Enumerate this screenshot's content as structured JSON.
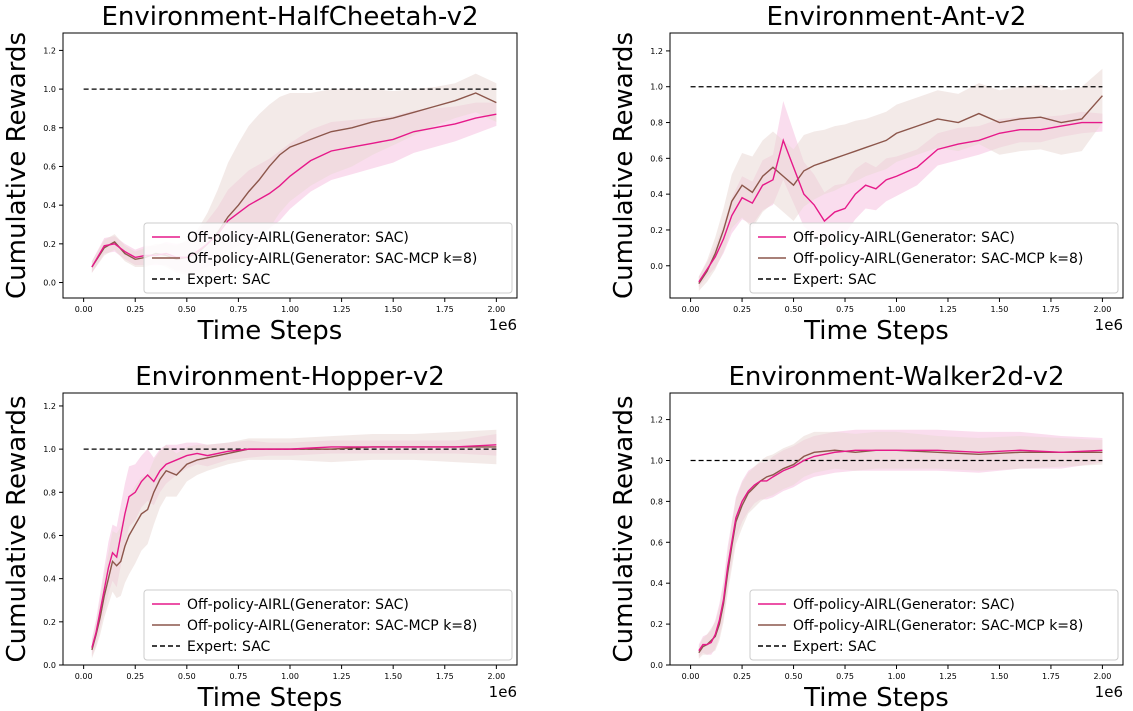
{
  "figure": {
    "legend_labels": [
      "Off-policy-AIRL(Generator: SAC)",
      "Off-policy-AIRL(Generator: SAC-MCP k=8)",
      "Expert: SAC"
    ],
    "colors": {
      "sac": "#e6198a",
      "mcp": "#8c564b",
      "expert": "#000000",
      "sac_band": "#f6c1e0",
      "mcp_band": "#e9d8d6"
    }
  },
  "chart_data": [
    {
      "type": "line",
      "title": "Environment-HalfCheetah-v2",
      "xlabel": "Time Steps",
      "ylabel": "Cumulative Rewards",
      "x_scale_label": "1e6",
      "xlim": [
        -0.1,
        2.1
      ],
      "ylim": [
        -0.08,
        1.29
      ],
      "xticks": [
        "0.00",
        "0.25",
        "0.50",
        "0.75",
        "1.00",
        "1.25",
        "1.50",
        "1.75",
        "2.00"
      ],
      "yticks": [
        "0.0",
        "0.2",
        "0.4",
        "0.6",
        "0.8",
        "1.0",
        "1.2"
      ],
      "legend_position": "lower right",
      "expert_level": 1.0,
      "series": [
        {
          "name": "Off-policy-AIRL(Generator: SAC)",
          "x": [
            0.04,
            0.1,
            0.15,
            0.2,
            0.25,
            0.3,
            0.35,
            0.4,
            0.45,
            0.5,
            0.55,
            0.6,
            0.65,
            0.7,
            0.75,
            0.8,
            0.85,
            0.9,
            0.95,
            1.0,
            1.1,
            1.2,
            1.3,
            1.4,
            1.5,
            1.6,
            1.7,
            1.8,
            1.9,
            2.0
          ],
          "y": [
            0.08,
            0.19,
            0.2,
            0.16,
            0.13,
            0.14,
            0.14,
            0.15,
            0.13,
            0.13,
            0.16,
            0.2,
            0.25,
            0.32,
            0.36,
            0.4,
            0.43,
            0.46,
            0.5,
            0.55,
            0.63,
            0.68,
            0.7,
            0.72,
            0.74,
            0.78,
            0.8,
            0.82,
            0.85,
            0.87
          ],
          "band": [
            0.03,
            0.04,
            0.04,
            0.04,
            0.04,
            0.05,
            0.05,
            0.06,
            0.07,
            0.08,
            0.1,
            0.12,
            0.14,
            0.16,
            0.17,
            0.18,
            0.18,
            0.18,
            0.18,
            0.17,
            0.16,
            0.15,
            0.14,
            0.13,
            0.12,
            0.11,
            0.1,
            0.09,
            0.08,
            0.06
          ]
        },
        {
          "name": "Off-policy-AIRL(Generator: SAC-MCP k=8)",
          "x": [
            0.04,
            0.1,
            0.15,
            0.2,
            0.25,
            0.3,
            0.35,
            0.4,
            0.45,
            0.5,
            0.55,
            0.6,
            0.65,
            0.7,
            0.75,
            0.8,
            0.85,
            0.9,
            0.95,
            1.0,
            1.1,
            1.2,
            1.3,
            1.4,
            1.5,
            1.6,
            1.7,
            1.8,
            1.9,
            2.0
          ],
          "y": [
            0.08,
            0.18,
            0.21,
            0.15,
            0.12,
            0.13,
            0.15,
            0.14,
            0.12,
            0.13,
            0.15,
            0.2,
            0.26,
            0.34,
            0.4,
            0.47,
            0.53,
            0.6,
            0.66,
            0.7,
            0.74,
            0.78,
            0.8,
            0.83,
            0.85,
            0.88,
            0.91,
            0.94,
            0.98,
            0.93
          ],
          "band": [
            0.03,
            0.04,
            0.04,
            0.04,
            0.04,
            0.05,
            0.05,
            0.06,
            0.07,
            0.09,
            0.12,
            0.16,
            0.22,
            0.28,
            0.32,
            0.34,
            0.34,
            0.32,
            0.3,
            0.28,
            0.24,
            0.22,
            0.2,
            0.17,
            0.14,
            0.12,
            0.1,
            0.09,
            0.1,
            0.1
          ]
        }
      ]
    },
    {
      "type": "line",
      "title": "Environment-Ant-v2",
      "xlabel": "Time Steps",
      "ylabel": "Cumulative Rewards",
      "x_scale_label": "1e6",
      "xlim": [
        -0.1,
        2.1
      ],
      "ylim": [
        -0.18,
        1.3
      ],
      "xticks": [
        "0.00",
        "0.25",
        "0.50",
        "0.75",
        "1.00",
        "1.25",
        "1.50",
        "1.75",
        "2.00"
      ],
      "yticks": [
        "0.0",
        "0.2",
        "0.4",
        "0.6",
        "0.8",
        "1.0",
        "1.2"
      ],
      "legend_position": "lower right",
      "expert_level": 1.0,
      "series": [
        {
          "name": "Off-policy-AIRL(Generator: SAC)",
          "x": [
            0.04,
            0.08,
            0.12,
            0.16,
            0.2,
            0.25,
            0.3,
            0.35,
            0.4,
            0.45,
            0.5,
            0.55,
            0.6,
            0.65,
            0.7,
            0.75,
            0.8,
            0.85,
            0.9,
            0.95,
            1.0,
            1.1,
            1.2,
            1.3,
            1.4,
            1.5,
            1.6,
            1.7,
            1.8,
            1.9,
            2.0
          ],
          "y": [
            -0.09,
            -0.02,
            0.05,
            0.15,
            0.28,
            0.38,
            0.35,
            0.45,
            0.48,
            0.7,
            0.55,
            0.4,
            0.34,
            0.25,
            0.3,
            0.32,
            0.4,
            0.45,
            0.43,
            0.48,
            0.5,
            0.55,
            0.65,
            0.68,
            0.7,
            0.74,
            0.76,
            0.76,
            0.78,
            0.8,
            0.8
          ],
          "band": [
            0.03,
            0.04,
            0.06,
            0.08,
            0.1,
            0.12,
            0.12,
            0.14,
            0.14,
            0.22,
            0.2,
            0.18,
            0.17,
            0.16,
            0.15,
            0.14,
            0.14,
            0.13,
            0.12,
            0.12,
            0.11,
            0.1,
            0.09,
            0.09,
            0.08,
            0.08,
            0.07,
            0.07,
            0.06,
            0.06,
            0.05
          ]
        },
        {
          "name": "Off-policy-AIRL(Generator: SAC-MCP k=8)",
          "x": [
            0.04,
            0.08,
            0.12,
            0.16,
            0.2,
            0.25,
            0.3,
            0.35,
            0.4,
            0.45,
            0.5,
            0.55,
            0.6,
            0.65,
            0.7,
            0.75,
            0.8,
            0.85,
            0.9,
            0.95,
            1.0,
            1.1,
            1.2,
            1.3,
            1.4,
            1.5,
            1.6,
            1.7,
            1.8,
            1.9,
            2.0
          ],
          "y": [
            -0.1,
            -0.03,
            0.07,
            0.2,
            0.36,
            0.45,
            0.41,
            0.5,
            0.55,
            0.5,
            0.45,
            0.53,
            0.56,
            0.58,
            0.6,
            0.62,
            0.64,
            0.66,
            0.68,
            0.7,
            0.74,
            0.78,
            0.82,
            0.8,
            0.85,
            0.8,
            0.82,
            0.83,
            0.8,
            0.82,
            0.95
          ],
          "band": [
            0.04,
            0.06,
            0.09,
            0.12,
            0.15,
            0.18,
            0.2,
            0.2,
            0.2,
            0.2,
            0.2,
            0.2,
            0.19,
            0.18,
            0.18,
            0.17,
            0.17,
            0.16,
            0.16,
            0.16,
            0.16,
            0.16,
            0.16,
            0.16,
            0.17,
            0.18,
            0.18,
            0.18,
            0.18,
            0.18,
            0.15
          ]
        }
      ]
    },
    {
      "type": "line",
      "title": "Environment-Hopper-v2",
      "xlabel": "Time Steps",
      "ylabel": "Cumulative Rewards",
      "x_scale_label": "1e6",
      "xlim": [
        -0.1,
        2.1
      ],
      "ylim": [
        0.0,
        1.26
      ],
      "xticks": [
        "0.00",
        "0.25",
        "0.50",
        "0.75",
        "1.00",
        "1.25",
        "1.50",
        "1.75",
        "2.00"
      ],
      "yticks": [
        "0.0",
        "0.2",
        "0.4",
        "0.6",
        "0.8",
        "1.0",
        "1.2"
      ],
      "legend_position": "lower right",
      "expert_level": 1.0,
      "series": [
        {
          "name": "Off-policy-AIRL(Generator: SAC)",
          "x": [
            0.04,
            0.06,
            0.08,
            0.1,
            0.12,
            0.14,
            0.16,
            0.18,
            0.2,
            0.22,
            0.25,
            0.28,
            0.31,
            0.34,
            0.37,
            0.4,
            0.45,
            0.5,
            0.55,
            0.6,
            0.7,
            0.8,
            0.9,
            1.0,
            1.2,
            1.4,
            1.6,
            1.8,
            2.0
          ],
          "y": [
            0.08,
            0.15,
            0.25,
            0.35,
            0.45,
            0.52,
            0.5,
            0.6,
            0.7,
            0.78,
            0.8,
            0.85,
            0.88,
            0.85,
            0.9,
            0.93,
            0.95,
            0.97,
            0.98,
            0.97,
            0.99,
            1.0,
            1.0,
            1.0,
            1.01,
            1.01,
            1.01,
            1.01,
            1.02
          ],
          "band": [
            0.04,
            0.06,
            0.08,
            0.1,
            0.12,
            0.13,
            0.14,
            0.14,
            0.14,
            0.14,
            0.13,
            0.12,
            0.12,
            0.11,
            0.1,
            0.09,
            0.07,
            0.06,
            0.05,
            0.05,
            0.04,
            0.04,
            0.03,
            0.03,
            0.03,
            0.03,
            0.03,
            0.03,
            0.05
          ]
        },
        {
          "name": "Off-policy-AIRL(Generator: SAC-MCP k=8)",
          "x": [
            0.04,
            0.06,
            0.08,
            0.1,
            0.12,
            0.14,
            0.16,
            0.18,
            0.2,
            0.22,
            0.25,
            0.28,
            0.31,
            0.34,
            0.37,
            0.4,
            0.45,
            0.5,
            0.55,
            0.6,
            0.7,
            0.8,
            0.9,
            1.0,
            1.2,
            1.4,
            1.6,
            1.8,
            2.0
          ],
          "y": [
            0.07,
            0.14,
            0.22,
            0.32,
            0.4,
            0.48,
            0.46,
            0.48,
            0.55,
            0.6,
            0.65,
            0.7,
            0.72,
            0.8,
            0.86,
            0.9,
            0.88,
            0.93,
            0.95,
            0.96,
            0.98,
            1.0,
            1.0,
            1.0,
            1.0,
            1.01,
            1.01,
            1.01,
            1.01
          ],
          "band": [
            0.04,
            0.06,
            0.08,
            0.1,
            0.12,
            0.14,
            0.15,
            0.16,
            0.17,
            0.18,
            0.18,
            0.17,
            0.16,
            0.15,
            0.13,
            0.12,
            0.1,
            0.08,
            0.07,
            0.06,
            0.05,
            0.05,
            0.05,
            0.05,
            0.06,
            0.06,
            0.06,
            0.07,
            0.08
          ]
        }
      ]
    },
    {
      "type": "line",
      "title": "Environment-Walker2d-v2",
      "xlabel": "Time Steps",
      "ylabel": "Cumulative Rewards",
      "x_scale_label": "1e6",
      "xlim": [
        -0.1,
        2.1
      ],
      "ylim": [
        0.0,
        1.33
      ],
      "xticks": [
        "0.00",
        "0.25",
        "0.50",
        "0.75",
        "1.00",
        "1.25",
        "1.50",
        "1.75",
        "2.00"
      ],
      "yticks": [
        "0.0",
        "0.2",
        "0.4",
        "0.6",
        "0.8",
        "1.0",
        "1.2"
      ],
      "legend_position": "lower right",
      "expert_level": 1.0,
      "series": [
        {
          "name": "Off-policy-AIRL(Generator: SAC)",
          "x": [
            0.04,
            0.06,
            0.08,
            0.1,
            0.12,
            0.14,
            0.16,
            0.18,
            0.2,
            0.22,
            0.25,
            0.28,
            0.31,
            0.34,
            0.37,
            0.4,
            0.45,
            0.5,
            0.55,
            0.6,
            0.7,
            0.8,
            0.9,
            1.0,
            1.2,
            1.4,
            1.6,
            1.8,
            2.0
          ],
          "y": [
            0.07,
            0.1,
            0.1,
            0.11,
            0.15,
            0.22,
            0.32,
            0.48,
            0.6,
            0.72,
            0.8,
            0.85,
            0.88,
            0.9,
            0.9,
            0.92,
            0.95,
            0.97,
            1.0,
            1.02,
            1.04,
            1.05,
            1.05,
            1.05,
            1.05,
            1.04,
            1.05,
            1.04,
            1.05
          ],
          "band": [
            0.03,
            0.04,
            0.05,
            0.06,
            0.07,
            0.08,
            0.09,
            0.1,
            0.1,
            0.1,
            0.1,
            0.1,
            0.09,
            0.09,
            0.09,
            0.1,
            0.1,
            0.1,
            0.1,
            0.1,
            0.1,
            0.1,
            0.1,
            0.1,
            0.1,
            0.1,
            0.09,
            0.08,
            0.06
          ]
        },
        {
          "name": "Off-policy-AIRL(Generator: SAC-MCP k=8)",
          "x": [
            0.04,
            0.06,
            0.08,
            0.1,
            0.12,
            0.14,
            0.16,
            0.18,
            0.2,
            0.22,
            0.25,
            0.28,
            0.31,
            0.34,
            0.37,
            0.4,
            0.45,
            0.5,
            0.55,
            0.6,
            0.7,
            0.8,
            0.9,
            1.0,
            1.2,
            1.4,
            1.6,
            1.8,
            2.0
          ],
          "y": [
            0.06,
            0.09,
            0.1,
            0.12,
            0.14,
            0.2,
            0.3,
            0.45,
            0.58,
            0.7,
            0.78,
            0.84,
            0.87,
            0.9,
            0.92,
            0.93,
            0.96,
            0.98,
            1.02,
            1.04,
            1.05,
            1.04,
            1.05,
            1.05,
            1.04,
            1.03,
            1.04,
            1.04,
            1.04
          ],
          "band": [
            0.03,
            0.04,
            0.05,
            0.06,
            0.07,
            0.08,
            0.09,
            0.1,
            0.11,
            0.11,
            0.11,
            0.1,
            0.1,
            0.1,
            0.1,
            0.1,
            0.1,
            0.1,
            0.1,
            0.1,
            0.09,
            0.09,
            0.09,
            0.09,
            0.08,
            0.08,
            0.08,
            0.07,
            0.06
          ]
        }
      ]
    }
  ]
}
